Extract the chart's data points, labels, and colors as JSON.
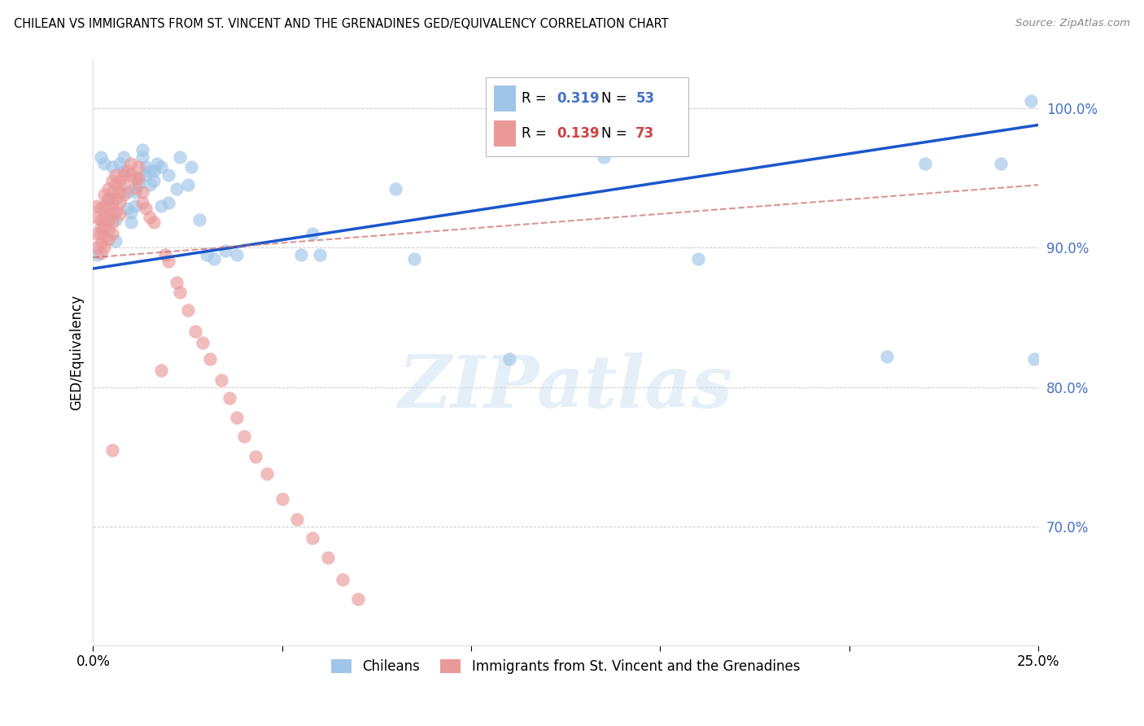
{
  "title": "CHILEAN VS IMMIGRANTS FROM ST. VINCENT AND THE GRENADINES GED/EQUIVALENCY CORRELATION CHART",
  "source": "Source: ZipAtlas.com",
  "ylabel": "GED/Equivalency",
  "xlim": [
    0.0,
    0.25
  ],
  "ylim": [
    0.615,
    1.035
  ],
  "yticks": [
    0.7,
    0.8,
    0.9,
    1.0
  ],
  "ytick_labels": [
    "70.0%",
    "80.0%",
    "90.0%",
    "100.0%"
  ],
  "blue_R": "0.319",
  "blue_N": "53",
  "pink_R": "0.139",
  "pink_N": "73",
  "blue_scatter_color": "#9fc5e8",
  "pink_scatter_color": "#ea9999",
  "blue_line_color": "#1a56cc",
  "pink_line_color": "#cc6666",
  "legend_label_blue": "Chileans",
  "legend_label_pink": "Immigrants from St. Vincent and the Grenadines",
  "blue_line_x0": 0.0,
  "blue_line_y0": 0.885,
  "blue_line_x1": 0.25,
  "blue_line_y1": 0.988,
  "pink_line_x0": 0.0,
  "pink_line_y0": 0.893,
  "pink_line_x1": 0.25,
  "pink_line_y1": 0.945,
  "blue_x": [
    0.001,
    0.002,
    0.003,
    0.004,
    0.005,
    0.006,
    0.006,
    0.007,
    0.008,
    0.008,
    0.009,
    0.009,
    0.01,
    0.01,
    0.011,
    0.011,
    0.012,
    0.012,
    0.013,
    0.013,
    0.014,
    0.014,
    0.015,
    0.015,
    0.016,
    0.016,
    0.017,
    0.018,
    0.018,
    0.02,
    0.02,
    0.022,
    0.023,
    0.025,
    0.026,
    0.028,
    0.03,
    0.032,
    0.035,
    0.038,
    0.055,
    0.058,
    0.06,
    0.08,
    0.085,
    0.11,
    0.135,
    0.16,
    0.21,
    0.22,
    0.24,
    0.248,
    0.249
  ],
  "blue_y": [
    0.895,
    0.965,
    0.96,
    0.935,
    0.958,
    0.92,
    0.905,
    0.96,
    0.965,
    0.955,
    0.94,
    0.928,
    0.918,
    0.925,
    0.93,
    0.94,
    0.95,
    0.945,
    0.965,
    0.97,
    0.958,
    0.952,
    0.955,
    0.945,
    0.955,
    0.948,
    0.96,
    0.958,
    0.93,
    0.952,
    0.932,
    0.942,
    0.965,
    0.945,
    0.958,
    0.92,
    0.895,
    0.892,
    0.898,
    0.895,
    0.895,
    0.91,
    0.895,
    0.942,
    0.892,
    0.82,
    0.965,
    0.892,
    0.822,
    0.96,
    0.96,
    1.005,
    0.82
  ],
  "pink_x": [
    0.001,
    0.001,
    0.001,
    0.001,
    0.002,
    0.002,
    0.002,
    0.002,
    0.002,
    0.002,
    0.003,
    0.003,
    0.003,
    0.003,
    0.003,
    0.003,
    0.004,
    0.004,
    0.004,
    0.004,
    0.004,
    0.004,
    0.005,
    0.005,
    0.005,
    0.005,
    0.005,
    0.005,
    0.006,
    0.006,
    0.006,
    0.006,
    0.007,
    0.007,
    0.007,
    0.007,
    0.008,
    0.008,
    0.008,
    0.009,
    0.01,
    0.01,
    0.011,
    0.011,
    0.012,
    0.012,
    0.013,
    0.013,
    0.014,
    0.015,
    0.016,
    0.018,
    0.019,
    0.02,
    0.022,
    0.023,
    0.025,
    0.027,
    0.029,
    0.031,
    0.034,
    0.036,
    0.038,
    0.04,
    0.043,
    0.046,
    0.05,
    0.054,
    0.058,
    0.062,
    0.066,
    0.07,
    0.005
  ],
  "pink_y": [
    0.93,
    0.922,
    0.91,
    0.9,
    0.928,
    0.92,
    0.915,
    0.91,
    0.903,
    0.896,
    0.938,
    0.93,
    0.922,
    0.915,
    0.908,
    0.9,
    0.942,
    0.935,
    0.928,
    0.92,
    0.913,
    0.906,
    0.948,
    0.94,
    0.932,
    0.925,
    0.918,
    0.91,
    0.952,
    0.945,
    0.935,
    0.926,
    0.948,
    0.94,
    0.932,
    0.924,
    0.952,
    0.945,
    0.938,
    0.955,
    0.96,
    0.952,
    0.95,
    0.943,
    0.958,
    0.95,
    0.94,
    0.932,
    0.928,
    0.922,
    0.918,
    0.812,
    0.895,
    0.89,
    0.875,
    0.868,
    0.855,
    0.84,
    0.832,
    0.82,
    0.805,
    0.792,
    0.778,
    0.765,
    0.75,
    0.738,
    0.72,
    0.705,
    0.692,
    0.678,
    0.662,
    0.648,
    0.755
  ]
}
